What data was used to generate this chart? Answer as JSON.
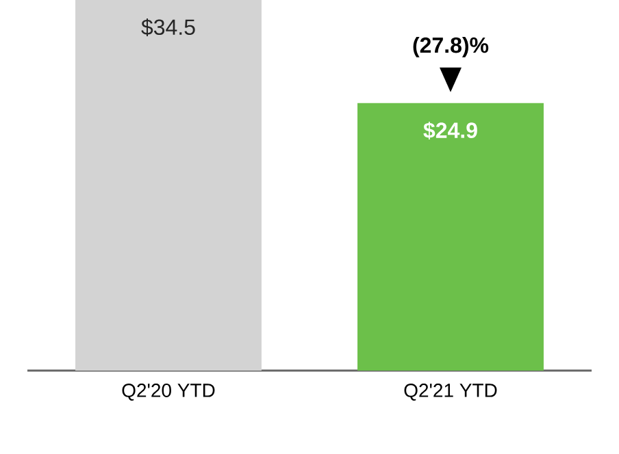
{
  "chart_data": {
    "type": "bar",
    "relative": false,
    "categories": [
      "Q2'20 YTD",
      "Q2'21 YTD"
    ],
    "values": [
      34.5,
      24.9
    ],
    "colors": [
      "#d3d3d3",
      "#6cc04a"
    ],
    "value_labels": [
      "$34.5",
      "$24.9"
    ],
    "annotations": [
      {
        "text": "(27.8)%",
        "x": "Q2'21 YTD",
        "y": 24.9
      }
    ],
    "legend": false,
    "grid": false
  }
}
